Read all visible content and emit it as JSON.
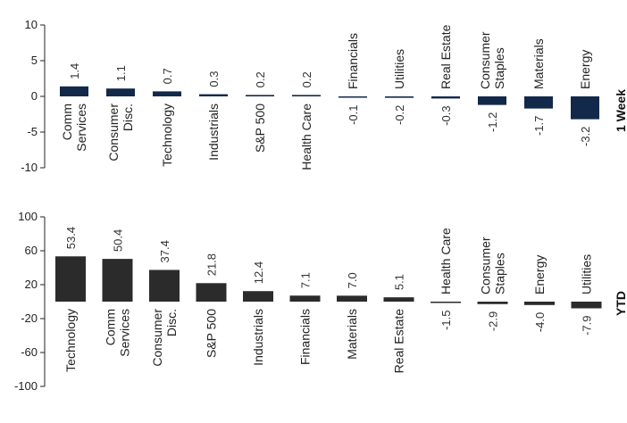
{
  "chart_data": [
    {
      "type": "bar",
      "title": "1 Week",
      "categories": [
        "Comm Services",
        "Consumer Disc.",
        "Technology",
        "Industrials",
        "S&P 500",
        "Health Care",
        "Financials",
        "Utilities",
        "Real Estate",
        "Consumer Staples",
        "Materials",
        "Energy"
      ],
      "values": [
        1.4,
        1.1,
        0.7,
        0.3,
        0.2,
        0.2,
        -0.1,
        -0.2,
        -0.3,
        -1.2,
        -1.7,
        -3.2
      ],
      "value_labels": [
        "1.4",
        "1.1",
        "0.7",
        "0.3",
        "0.2",
        "0.2",
        "-0.1",
        "-0.2",
        "-0.3",
        "-1.2",
        "-1.7",
        "-3.2"
      ],
      "ylim": [
        -10,
        10
      ],
      "yticks": [
        "10",
        "5",
        "0",
        "-5",
        "-10"
      ],
      "ytick_values": [
        10,
        5,
        0,
        -5,
        -10
      ],
      "bar_color": "#12294a",
      "grid": false
    },
    {
      "type": "bar",
      "title": "YTD",
      "categories": [
        "Technology",
        "Comm Services",
        "Consumer Disc.",
        "S&P 500",
        "Industrials",
        "Financials",
        "Materials",
        "Real Estate",
        "Health Care",
        "Consumer Staples",
        "Energy",
        "Utilities"
      ],
      "values": [
        53.4,
        50.4,
        37.4,
        21.8,
        12.4,
        7.1,
        7.0,
        5.1,
        -1.5,
        -2.9,
        -4.0,
        -7.9
      ],
      "value_labels": [
        "53.4",
        "50.4",
        "37.4",
        "21.8",
        "12.4",
        "7.1",
        "7.0",
        "5.1",
        "-1.5",
        "-2.9",
        "-4.0",
        "-7.9"
      ],
      "ylim": [
        -100,
        100
      ],
      "yticks": [
        "100",
        "60",
        "20",
        "-20",
        "-60",
        "-100"
      ],
      "ytick_values": [
        100,
        60,
        20,
        -20,
        -60,
        -100
      ],
      "bar_color": "#2b2b2b",
      "grid": false
    }
  ]
}
